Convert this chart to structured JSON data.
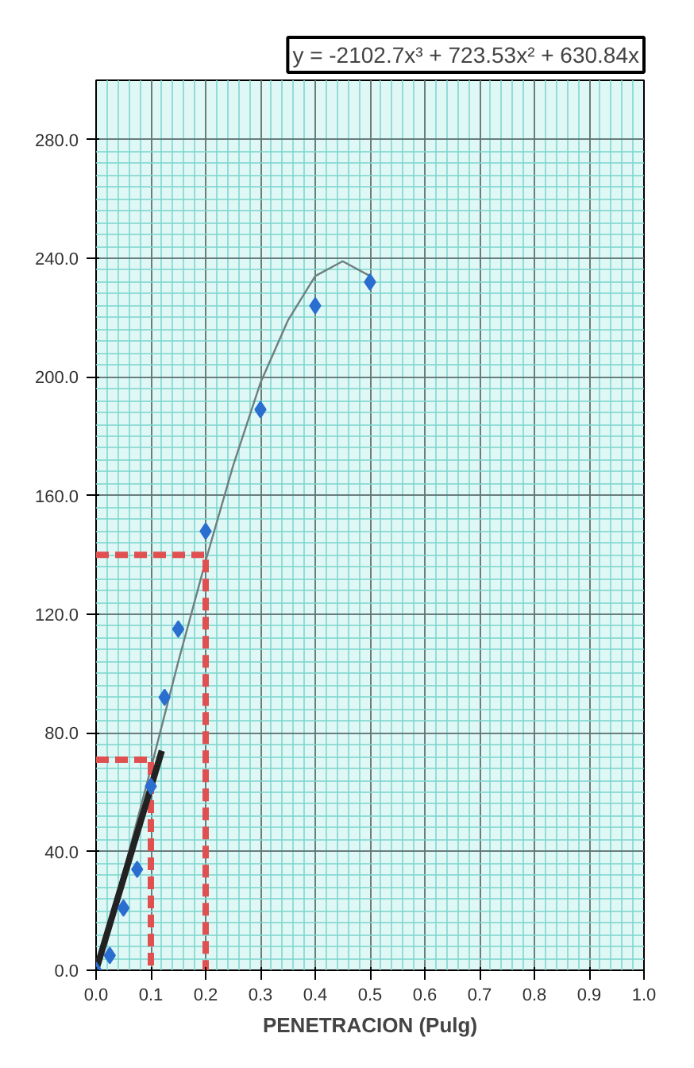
{
  "chart_data": {
    "type": "scatter",
    "xlabel": "PENETRACION (Pulg)",
    "annotations": [
      "y = -2102.7x³ + 723.53x² + 630.84x"
    ],
    "xlim": [
      0,
      1
    ],
    "ylim": [
      0,
      300
    ],
    "xticks": [
      {
        "value": 0,
        "label": "0.0"
      },
      {
        "value": 0.1,
        "label": "0.1"
      },
      {
        "value": 0.2,
        "label": "0.2"
      },
      {
        "value": 0.3,
        "label": "0.3"
      },
      {
        "value": 0.4,
        "label": "0.4"
      },
      {
        "value": 0.5,
        "label": "0.5"
      },
      {
        "value": 0.6,
        "label": "0.6"
      },
      {
        "value": 0.7,
        "label": "0.7"
      },
      {
        "value": 0.8,
        "label": "0.8"
      },
      {
        "value": 0.9,
        "label": "0.9"
      },
      {
        "value": 1.0,
        "label": "1.0"
      }
    ],
    "yticks": [
      {
        "value": 0,
        "label": "0.0"
      },
      {
        "value": 40,
        "label": "40.0"
      },
      {
        "value": 80,
        "label": "80.0"
      },
      {
        "value": 120,
        "label": "120.0"
      },
      {
        "value": 160,
        "label": "160.0"
      },
      {
        "value": 200,
        "label": "200.0"
      },
      {
        "value": 240,
        "label": "240.0"
      },
      {
        "value": 280,
        "label": "280.0"
      }
    ],
    "grid": true,
    "marker": "diamond",
    "series": [
      {
        "type": "line",
        "marker": "none",
        "color": "#6e7f80",
        "line_style": "solid",
        "x": [
          0,
          0.05,
          0.1,
          0.15,
          0.2,
          0.25,
          0.3,
          0.35,
          0.4,
          0.45,
          0.5
        ],
        "values": [
          0,
          33,
          68,
          104,
          138,
          170,
          198,
          219,
          234,
          239,
          234
        ]
      },
      {
        "type": "line",
        "marker": "none",
        "color": "#e05050",
        "line_style": "dashed",
        "x": [
          0,
          0.1,
          0.1
        ],
        "values": [
          71,
          71,
          0
        ]
      },
      {
        "type": "line",
        "marker": "none",
        "color": "#e05050",
        "line_style": "dashed",
        "x": [
          0,
          0.2,
          0.2
        ],
        "values": [
          140,
          140,
          0
        ]
      },
      {
        "type": "line",
        "marker": "none",
        "color": "#222222",
        "line_style": "solid",
        "x": [
          0,
          0.12
        ],
        "values": [
          0,
          74
        ]
      },
      {
        "color": "#2a6fd0",
        "x": [
          0,
          0.025,
          0.05,
          0.075,
          0.1,
          0.125,
          0.15,
          0.2,
          0.3,
          0.4,
          0.5
        ],
        "values": [
          0,
          5,
          21,
          34,
          62,
          92,
          115,
          148,
          189,
          224,
          232
        ]
      }
    ]
  }
}
